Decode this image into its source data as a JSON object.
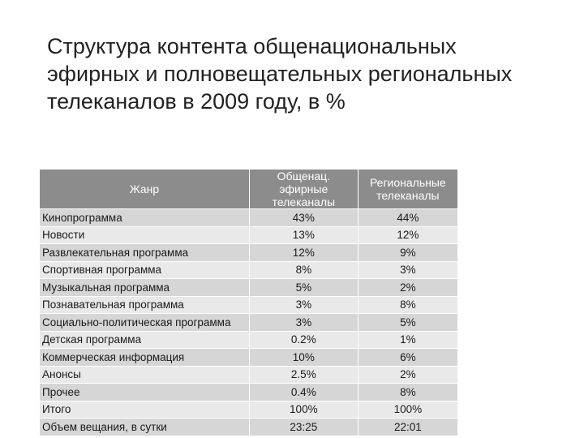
{
  "slide": {
    "title_lines": [
      "Структура контента общенациональных",
      "эфирных и полновещательных региональных",
      "телеканалов в 2009 году, в %"
    ],
    "table": {
      "header": [
        "Жанр",
        "Общенац. эфирные телеканалы",
        "Региональные телеканалы"
      ],
      "rows": [
        [
          "Кинопрограмма",
          "43%",
          "44%"
        ],
        [
          "Новости",
          "13%",
          "12%"
        ],
        [
          "Развлекательная программа",
          "12%",
          "9%"
        ],
        [
          "Спортивная программа",
          "8%",
          "3%"
        ],
        [
          "Музыкальная программа",
          "5%",
          "2%"
        ],
        [
          "Познавательная программа",
          "3%",
          "8%"
        ],
        [
          "Социально-политическая программа",
          "3%",
          "5%"
        ],
        [
          "Детская программа",
          "0.2%",
          "1%"
        ],
        [
          "Коммерческая информация",
          "10%",
          "6%"
        ],
        [
          "Анонсы",
          "2.5%",
          "2%"
        ],
        [
          "Прочее",
          "0.4%",
          "8%"
        ],
        [
          "Итого",
          "100%",
          "100%"
        ],
        [
          "Объем вещания, в сутки",
          "23:25",
          "22:01"
        ]
      ]
    }
  }
}
